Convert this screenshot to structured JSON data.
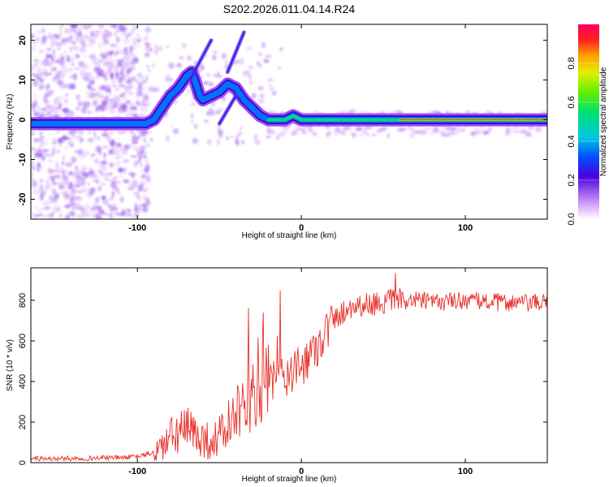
{
  "title": "S202.2026.011.04.14.R24",
  "chart_data": [
    {
      "type": "heatmap",
      "xlabel": "Height of straight line (km)",
      "ylabel": "Frequency (Hz)",
      "xlim": [
        -165,
        150
      ],
      "ylim": [
        -25,
        24
      ],
      "xticks": [
        -100,
        0,
        100
      ],
      "xtick_labels": [
        "-100",
        "0",
        "100"
      ],
      "yticks": [
        -20,
        -10,
        0,
        10,
        20
      ],
      "ytick_labels": [
        "-20",
        "-10",
        "0",
        "10",
        "20"
      ],
      "colorbar": {
        "label": "Normalized spectral amplitude",
        "range": [
          0,
          1
        ],
        "ticks": [
          0.0,
          0.2,
          0.4,
          0.6,
          0.8
        ],
        "tick_labels": [
          "0.0",
          "0.2",
          "0.4",
          "0.6",
          "0.8"
        ]
      },
      "ridge": {
        "x": [
          -165,
          -150,
          -130,
          -110,
          -100,
          -95,
          -90,
          -85,
          -80,
          -75,
          -70,
          -67,
          -65,
          -62,
          -60,
          -55,
          -50,
          -45,
          -40,
          -35,
          -30,
          -25,
          -20,
          -15,
          -10,
          -5,
          0,
          5,
          10,
          20,
          30,
          50,
          80,
          100,
          120,
          150
        ],
        "y": [
          -1,
          -1,
          -1,
          -1,
          -1,
          -1,
          0,
          3,
          6,
          8,
          11,
          12,
          10,
          6,
          5,
          6,
          7,
          9,
          8,
          5,
          3,
          1,
          0,
          0,
          0,
          1,
          0,
          0,
          0,
          0,
          0,
          0,
          0,
          0,
          0,
          0
        ]
      }
    },
    {
      "type": "line",
      "xlabel": "Height of straight line (km)",
      "ylabel": "SNR (10 * v/v)",
      "xlim": [
        -165,
        150
      ],
      "ylim": [
        0,
        960
      ],
      "xticks": [
        -100,
        0,
        100
      ],
      "xtick_labels": [
        "-100",
        "0",
        "100"
      ],
      "yticks": [
        0,
        200,
        400,
        600,
        800
      ],
      "ytick_labels": [
        "0",
        "200",
        "400",
        "600",
        "800"
      ],
      "color": "#e8302a",
      "series": [
        {
          "x": [
            -165,
            -150,
            -130,
            -110,
            -100,
            -90,
            -85,
            -80,
            -75,
            -70,
            -65,
            -60,
            -55,
            -50,
            -45,
            -40,
            -35,
            -30,
            -25,
            -20,
            -15,
            -10,
            -5,
            0,
            5,
            10,
            15,
            20,
            25,
            30,
            40,
            50,
            60,
            70,
            80,
            90,
            100,
            110,
            120,
            130,
            140,
            150
          ],
          "values": [
            20,
            20,
            22,
            25,
            30,
            50,
            80,
            120,
            150,
            160,
            140,
            120,
            100,
            130,
            180,
            220,
            260,
            350,
            400,
            380,
            420,
            430,
            440,
            480,
            530,
            580,
            650,
            700,
            740,
            770,
            780,
            790,
            800,
            800,
            790,
            795,
            800,
            795,
            790,
            790,
            785,
            790
          ]
        }
      ]
    }
  ]
}
